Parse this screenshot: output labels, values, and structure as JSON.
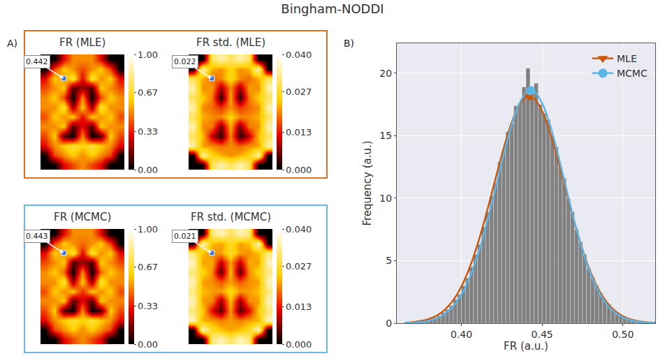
{
  "title": "Bingham-NODDI",
  "chart_data": [
    {
      "type": "heatmap",
      "panel": "A)",
      "title": "FR (MLE)",
      "color": "#d9701f",
      "cells": [
        [
          0,
          0,
          0.3,
          0.5,
          0.5,
          0.5,
          0.3,
          0,
          0
        ],
        [
          0,
          0.4,
          0.6,
          0.5,
          0.4,
          0.5,
          0.6,
          0.4,
          0
        ],
        [
          0.3,
          0.6,
          0.5,
          0.7,
          0.3,
          0.7,
          0.5,
          0.6,
          0.3
        ],
        [
          0.4,
          0.5,
          0.6,
          0.1,
          0.2,
          0.1,
          0.6,
          0.5,
          0.4
        ],
        [
          0.5,
          0.6,
          0.4,
          0.0,
          0.5,
          0.0,
          0.4,
          0.6,
          0.5
        ],
        [
          0.5,
          0.5,
          0.7,
          0.2,
          0.6,
          0.2,
          0.7,
          0.5,
          0.5
        ],
        [
          0.4,
          0.6,
          0.5,
          0.6,
          0.3,
          0.6,
          0.5,
          0.6,
          0.4
        ],
        [
          0.5,
          0.5,
          0.6,
          0.1,
          0.3,
          0.1,
          0.6,
          0.5,
          0.5
        ],
        [
          0.4,
          0.6,
          0.1,
          0.0,
          0.5,
          0.0,
          0.1,
          0.6,
          0.4
        ],
        [
          0.3,
          0.5,
          0.6,
          0.7,
          0.6,
          0.7,
          0.6,
          0.5,
          0.3
        ],
        [
          0,
          0.4,
          0.5,
          0.6,
          0.5,
          0.6,
          0.5,
          0.4,
          0
        ],
        [
          0,
          0,
          0.3,
          0.4,
          0.5,
          0.4,
          0.3,
          0,
          0
        ]
      ],
      "colorbar": {
        "range": [
          0,
          1
        ],
        "ticks": [
          {
            "value": 0,
            "label": "0.00"
          },
          0.33,
          0.67,
          {
            "value": 1,
            "label": "1.00"
          }
        ]
      },
      "selected_voxel": {
        "row": 2,
        "col": 2,
        "label": 0.442
      }
    },
    {
      "type": "heatmap",
      "title": "FR std. (MLE)",
      "color": "#d9701f",
      "cells": [
        [
          0,
          0,
          0.03,
          0.035,
          0.03,
          0.035,
          0.03,
          0,
          0
        ],
        [
          0,
          0.035,
          0.022,
          0.02,
          0.025,
          0.02,
          0.022,
          0.035,
          0
        ],
        [
          0.03,
          0.022,
          0.018,
          0.02,
          0.026,
          0.02,
          0.018,
          0.022,
          0.03
        ],
        [
          0.035,
          0.02,
          0.021,
          0.008,
          0.02,
          0.008,
          0.021,
          0.02,
          0.035
        ],
        [
          0.03,
          0.024,
          0.019,
          0.002,
          0.022,
          0.002,
          0.019,
          0.024,
          0.03
        ],
        [
          0.035,
          0.02,
          0.018,
          0.015,
          0.02,
          0.015,
          0.018,
          0.02,
          0.035
        ],
        [
          0.03,
          0.022,
          0.02,
          0.02,
          0.025,
          0.02,
          0.02,
          0.022,
          0.03
        ],
        [
          0.035,
          0.02,
          0.019,
          0.006,
          0.022,
          0.006,
          0.019,
          0.02,
          0.035
        ],
        [
          0.03,
          0.023,
          0.01,
          0.002,
          0.02,
          0.002,
          0.01,
          0.023,
          0.03
        ],
        [
          0.035,
          0.021,
          0.02,
          0.018,
          0.02,
          0.018,
          0.02,
          0.021,
          0.035
        ],
        [
          0,
          0.035,
          0.025,
          0.022,
          0.02,
          0.022,
          0.025,
          0.035,
          0
        ],
        [
          0,
          0,
          0.03,
          0.035,
          0.03,
          0.035,
          0.03,
          0,
          0
        ]
      ],
      "colorbar": {
        "range": [
          0,
          0.04
        ],
        "ticks": [
          {
            "value": 0,
            "label": "0.000"
          },
          0.013,
          0.027,
          {
            "value": 0.04,
            "label": "0.040"
          }
        ]
      },
      "selected_voxel": {
        "row": 2,
        "col": 2,
        "label": 0.022
      }
    },
    {
      "type": "heatmap",
      "title": "FR (MCMC)",
      "color": "#6ab8e2",
      "cells": [
        [
          0,
          0,
          0.3,
          0.5,
          0.5,
          0.5,
          0.3,
          0,
          0
        ],
        [
          0,
          0.4,
          0.6,
          0.5,
          0.45,
          0.5,
          0.6,
          0.4,
          0
        ],
        [
          0.3,
          0.6,
          0.5,
          0.7,
          0.3,
          0.7,
          0.5,
          0.6,
          0.3
        ],
        [
          0.4,
          0.5,
          0.6,
          0.1,
          0.2,
          0.1,
          0.6,
          0.5,
          0.4
        ],
        [
          0.5,
          0.6,
          0.45,
          0.0,
          0.5,
          0.0,
          0.45,
          0.6,
          0.5
        ],
        [
          0.5,
          0.5,
          0.7,
          0.2,
          0.6,
          0.2,
          0.7,
          0.5,
          0.5
        ],
        [
          0.4,
          0.6,
          0.5,
          0.6,
          0.35,
          0.6,
          0.5,
          0.6,
          0.4
        ],
        [
          0.5,
          0.5,
          0.6,
          0.1,
          0.3,
          0.1,
          0.6,
          0.5,
          0.5
        ],
        [
          0.4,
          0.6,
          0.1,
          0.0,
          0.5,
          0.0,
          0.1,
          0.6,
          0.4
        ],
        [
          0.3,
          0.5,
          0.6,
          0.7,
          0.6,
          0.7,
          0.6,
          0.5,
          0.3
        ],
        [
          0,
          0.4,
          0.5,
          0.6,
          0.5,
          0.6,
          0.5,
          0.4,
          0
        ],
        [
          0,
          0,
          0.3,
          0.4,
          0.5,
          0.4,
          0.3,
          0,
          0
        ]
      ],
      "colorbar": {
        "range": [
          0,
          1
        ],
        "ticks": [
          {
            "value": 0,
            "label": "0.00"
          },
          0.33,
          0.67,
          {
            "value": 1,
            "label": "1.00"
          }
        ]
      },
      "selected_voxel": {
        "row": 2,
        "col": 2,
        "label": 0.443
      }
    },
    {
      "type": "heatmap",
      "title": "FR std. (MCMC)",
      "color": "#6ab8e2",
      "cells": [
        [
          0,
          0,
          0.032,
          0.036,
          0.03,
          0.036,
          0.032,
          0,
          0
        ],
        [
          0,
          0.036,
          0.023,
          0.021,
          0.026,
          0.021,
          0.023,
          0.036,
          0
        ],
        [
          0.032,
          0.023,
          0.02,
          0.021,
          0.027,
          0.021,
          0.02,
          0.023,
          0.032
        ],
        [
          0.036,
          0.021,
          0.022,
          0.01,
          0.021,
          0.01,
          0.022,
          0.021,
          0.036
        ],
        [
          0.032,
          0.025,
          0.02,
          0.004,
          0.023,
          0.004,
          0.02,
          0.025,
          0.032
        ],
        [
          0.036,
          0.021,
          0.02,
          0.017,
          0.021,
          0.017,
          0.02,
          0.021,
          0.036
        ],
        [
          0.032,
          0.023,
          0.021,
          0.021,
          0.026,
          0.021,
          0.021,
          0.023,
          0.032
        ],
        [
          0.036,
          0.021,
          0.02,
          0.008,
          0.023,
          0.008,
          0.02,
          0.021,
          0.036
        ],
        [
          0.032,
          0.024,
          0.012,
          0.004,
          0.021,
          0.004,
          0.012,
          0.024,
          0.032
        ],
        [
          0.036,
          0.022,
          0.021,
          0.019,
          0.021,
          0.019,
          0.021,
          0.022,
          0.036
        ],
        [
          0,
          0.036,
          0.026,
          0.023,
          0.021,
          0.023,
          0.026,
          0.036,
          0
        ],
        [
          0,
          0,
          0.032,
          0.036,
          0.03,
          0.036,
          0.032,
          0,
          0
        ]
      ],
      "colorbar": {
        "range": [
          0,
          0.04
        ],
        "ticks": [
          {
            "value": 0,
            "label": "0.000"
          },
          0.013,
          0.027,
          {
            "value": 0.04,
            "label": "0.040"
          }
        ]
      },
      "selected_voxel": {
        "row": 2,
        "col": 2,
        "label": 0.021
      }
    },
    {
      "type": "histogram",
      "panel": "B)",
      "x_label": "FR (a.u.)",
      "y_label": "Frequency (a.u.)",
      "color": "#808080",
      "grid": true,
      "legend": "upper right",
      "bins": [
        0.37,
        0.3725,
        0.375,
        0.3775,
        0.38,
        0.3825,
        0.385,
        0.3875,
        0.39,
        0.3925,
        0.395,
        0.3975,
        0.4,
        0.4025,
        0.405,
        0.4075,
        0.41,
        0.4125,
        0.415,
        0.4175,
        0.42,
        0.4225,
        0.425,
        0.4275,
        0.43,
        0.4325,
        0.435,
        0.4375,
        0.44,
        0.4425,
        0.445,
        0.4475,
        0.45,
        0.4525,
        0.455,
        0.4575,
        0.46,
        0.4625,
        0.465,
        0.4675,
        0.47,
        0.4725,
        0.475,
        0.4775,
        0.48,
        0.4825,
        0.485,
        0.4875,
        0.49,
        0.4925,
        0.495,
        0.4975,
        0.5,
        0.5025,
        0.505,
        0.5075,
        0.51,
        0.5125,
        0.515
      ],
      "counts": [
        0.08,
        0.12,
        0.15,
        0.25,
        0.3,
        0.46,
        0.6,
        0.85,
        1.1,
        1.4,
        1.9,
        2.3,
        3.0,
        3.6,
        4.5,
        5.5,
        6.3,
        7.7,
        8.9,
        10.2,
        11.2,
        12.9,
        13.8,
        15.3,
        16.0,
        17.4,
        17.6,
        18.9,
        20.4,
        18.4,
        19.2,
        17.5,
        16.8,
        16.3,
        15.0,
        14.1,
        12.5,
        11.6,
        10.0,
        8.9,
        7.5,
        6.5,
        5.5,
        4.4,
        3.7,
        3.0,
        2.4,
        1.8,
        1.5,
        1.1,
        0.85,
        0.6,
        0.45,
        0.35,
        0.25,
        0.18,
        0.12,
        0.08
      ],
      "xlim": [
        0.36,
        0.52
      ],
      "xticks": [
        {
          "value": 0.4,
          "label": "0.40"
        },
        {
          "value": 0.45,
          "label": "0.45"
        },
        {
          "value": 0.5,
          "label": "0.50"
        }
      ],
      "ylim": [
        0,
        22.4
      ],
      "yticks": [
        0,
        5,
        10,
        15,
        20
      ],
      "series": [
        {
          "name": "MLE",
          "type": "line",
          "color": "#c9580d",
          "marker": "triangle-down",
          "x": [
            0.365,
            0.37,
            0.375,
            0.38,
            0.385,
            0.39,
            0.395,
            0.4,
            0.405,
            0.41,
            0.415,
            0.42,
            0.425,
            0.43,
            0.435,
            0.44,
            0.445,
            0.45,
            0.455,
            0.46,
            0.465,
            0.47,
            0.475,
            0.48,
            0.485,
            0.49,
            0.495,
            0.5,
            0.505,
            0.51,
            0.515,
            0.52
          ],
          "values": [
            0.04,
            0.09,
            0.18,
            0.34,
            0.63,
            1.11,
            1.85,
            2.93,
            4.41,
            6.3,
            8.54,
            11.0,
            13.45,
            15.62,
            17.24,
            18.06,
            17.96,
            16.97,
            15.23,
            12.98,
            10.5,
            8.07,
            5.89,
            4.08,
            2.68,
            1.68,
            1.0,
            0.56,
            0.3,
            0.15,
            0.07,
            0.03
          ],
          "peak": [
            0.442,
            18.13
          ]
        },
        {
          "name": "MCMC",
          "type": "line",
          "color": "#5ab4e6",
          "marker": "circle",
          "x": [
            0.365,
            0.37,
            0.375,
            0.38,
            0.385,
            0.39,
            0.395,
            0.4,
            0.405,
            0.41,
            0.415,
            0.42,
            0.425,
            0.43,
            0.435,
            0.44,
            0.445,
            0.45,
            0.455,
            0.46,
            0.465,
            0.47,
            0.475,
            0.48,
            0.485,
            0.49,
            0.495,
            0.5,
            0.505,
            0.51,
            0.515,
            0.52
          ],
          "values": [
            0.02,
            0.04,
            0.1,
            0.21,
            0.41,
            0.77,
            1.36,
            2.28,
            3.62,
            5.41,
            7.65,
            10.21,
            12.89,
            15.36,
            17.3,
            18.41,
            18.52,
            17.6,
            15.81,
            13.4,
            10.74,
            8.13,
            5.82,
            3.94,
            2.52,
            1.52,
            0.87,
            0.47,
            0.24,
            0.11,
            0.05,
            0.02
          ],
          "peak": [
            0.443,
            18.6
          ]
        }
      ]
    }
  ]
}
